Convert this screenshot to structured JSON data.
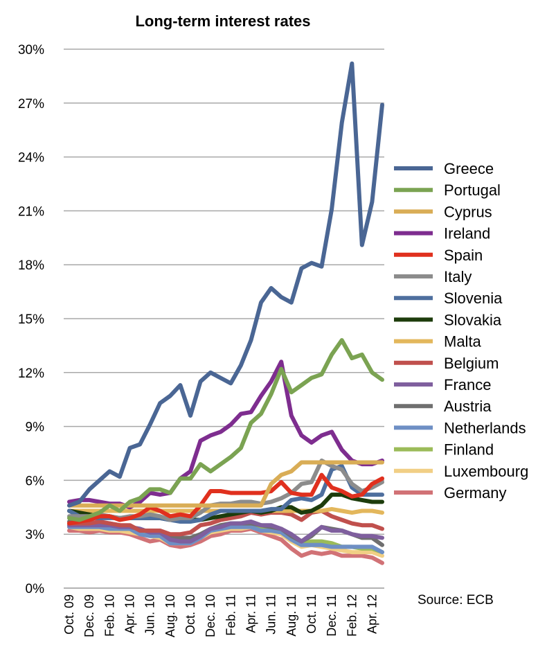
{
  "chart_data": {
    "type": "line",
    "title": "Long-term interest rates",
    "source": "Source: ECB",
    "ylim": [
      0,
      30
    ],
    "yticks": [
      0,
      3,
      6,
      9,
      12,
      15,
      18,
      21,
      24,
      27,
      30
    ],
    "ytick_labels": [
      "0%",
      "3%",
      "6%",
      "9%",
      "12%",
      "15%",
      "18%",
      "21%",
      "24%",
      "27%",
      "30%"
    ],
    "xtick_labels": [
      "Oct. 09",
      "Dec. 09",
      "Feb. 10",
      "Apr. 10",
      "Jun. 10",
      "Aug. 10",
      "Oct. 10",
      "Dec. 10",
      "Feb. 11",
      "Apr. 11",
      "Jun. 11",
      "Aug. 11",
      "Oct. 11",
      "Dec. 11",
      "Feb. 12",
      "Apr. 12"
    ],
    "x": [
      "Oct. 09",
      "Nov. 09",
      "Dec. 09",
      "Jan. 10",
      "Feb. 10",
      "Mar. 10",
      "Apr. 10",
      "May 10",
      "Jun. 10",
      "Jul. 10",
      "Aug. 10",
      "Sep. 10",
      "Oct. 10",
      "Nov. 10",
      "Dec. 10",
      "Jan. 11",
      "Feb. 11",
      "Mar. 11",
      "Apr. 11",
      "May 11",
      "Jun. 11",
      "Jul. 11",
      "Aug. 11",
      "Sep. 11",
      "Oct. 11",
      "Nov. 11",
      "Dec. 11",
      "Jan. 12",
      "Feb. 12",
      "Mar. 12",
      "Apr. 12",
      "May 12"
    ],
    "grid": true,
    "legend_position": "right",
    "series": [
      {
        "name": "Greece",
        "color": "#4a6694",
        "values": [
          4.6,
          4.8,
          5.5,
          6.0,
          6.5,
          6.2,
          7.8,
          8.0,
          9.1,
          10.3,
          10.7,
          11.3,
          9.6,
          11.5,
          12.0,
          11.7,
          11.4,
          12.4,
          13.8,
          15.9,
          16.7,
          16.2,
          15.9,
          17.8,
          18.1,
          17.9,
          21.1,
          25.9,
          29.2,
          19.1,
          21.5,
          26.9
        ]
      },
      {
        "name": "Portugal",
        "color": "#7ba352",
        "values": [
          3.9,
          3.8,
          4.0,
          4.2,
          4.6,
          4.3,
          4.8,
          5.0,
          5.5,
          5.5,
          5.3,
          6.1,
          6.1,
          6.9,
          6.5,
          6.9,
          7.3,
          7.8,
          9.2,
          9.7,
          10.8,
          12.2,
          10.9,
          11.3,
          11.7,
          11.9,
          13.0,
          13.8,
          12.8,
          13.0,
          12.0,
          11.6
        ]
      },
      {
        "name": "Cyprus",
        "color": "#d9ad56",
        "values": [
          4.6,
          4.6,
          4.6,
          4.6,
          4.6,
          4.6,
          4.6,
          4.6,
          4.6,
          4.6,
          4.6,
          4.6,
          4.6,
          4.6,
          4.6,
          4.6,
          4.6,
          4.6,
          4.6,
          4.6,
          5.8,
          6.3,
          6.5,
          7.0,
          7.0,
          7.0,
          7.0,
          7.0,
          7.0,
          7.0,
          7.0,
          7.0
        ]
      },
      {
        "name": "Ireland",
        "color": "#7e2d8f",
        "values": [
          4.8,
          4.9,
          4.9,
          4.8,
          4.7,
          4.7,
          4.5,
          4.8,
          5.3,
          5.2,
          5.3,
          6.1,
          6.5,
          8.2,
          8.5,
          8.7,
          9.1,
          9.7,
          9.8,
          10.7,
          11.5,
          12.6,
          9.6,
          8.5,
          8.1,
          8.5,
          8.7,
          7.7,
          7.1,
          6.9,
          6.9,
          7.1
        ]
      },
      {
        "name": "Spain",
        "color": "#e0301e",
        "values": [
          3.6,
          3.7,
          3.8,
          4.0,
          4.0,
          3.8,
          3.9,
          4.1,
          4.5,
          4.3,
          4.0,
          4.1,
          4.0,
          4.6,
          5.4,
          5.4,
          5.3,
          5.3,
          5.3,
          5.3,
          5.4,
          5.9,
          5.3,
          5.2,
          5.2,
          6.3,
          5.6,
          5.4,
          5.1,
          5.2,
          5.8,
          6.1
        ]
      },
      {
        "name": "Italy",
        "color": "#8c8c8c",
        "values": [
          4.0,
          4.0,
          4.0,
          4.1,
          4.0,
          3.9,
          4.0,
          4.0,
          4.1,
          4.0,
          3.8,
          3.9,
          3.9,
          4.2,
          4.6,
          4.7,
          4.7,
          4.8,
          4.8,
          4.7,
          4.8,
          5.0,
          5.3,
          5.8,
          5.9,
          7.1,
          6.8,
          6.6,
          5.8,
          5.4,
          5.6,
          5.9
        ]
      },
      {
        "name": "Slovenia",
        "color": "#4e6f9e",
        "values": [
          4.3,
          4.0,
          3.9,
          3.9,
          3.9,
          3.9,
          3.9,
          3.9,
          3.9,
          3.9,
          3.8,
          3.7,
          3.7,
          3.8,
          4.1,
          4.3,
          4.3,
          4.3,
          4.3,
          4.3,
          4.4,
          4.4,
          4.9,
          5.0,
          4.9,
          5.2,
          6.6,
          6.8,
          5.6,
          5.2,
          5.2,
          5.2
        ]
      },
      {
        "name": "Slovakia",
        "color": "#1d3c0c",
        "values": [
          4.3,
          4.2,
          4.1,
          4.0,
          4.0,
          3.9,
          3.9,
          3.9,
          3.9,
          3.9,
          3.8,
          3.8,
          3.8,
          3.8,
          3.9,
          4.0,
          4.1,
          4.2,
          4.3,
          4.2,
          4.3,
          4.5,
          4.5,
          4.2,
          4.3,
          4.6,
          5.2,
          5.2,
          5.0,
          4.9,
          4.8,
          4.8
        ]
      },
      {
        "name": "Malta",
        "color": "#e3b75c",
        "values": [
          4.3,
          4.3,
          4.3,
          4.3,
          4.3,
          4.3,
          4.3,
          4.3,
          4.3,
          4.3,
          4.3,
          4.3,
          4.3,
          4.3,
          4.3,
          4.3,
          4.3,
          4.3,
          4.3,
          4.3,
          4.3,
          4.3,
          4.3,
          4.3,
          4.3,
          4.3,
          4.4,
          4.3,
          4.2,
          4.3,
          4.3,
          4.2
        ]
      },
      {
        "name": "Belgium",
        "color": "#c0504d",
        "values": [
          3.6,
          3.6,
          3.6,
          3.7,
          3.6,
          3.5,
          3.5,
          3.2,
          3.2,
          3.2,
          3.0,
          3.0,
          3.1,
          3.5,
          3.6,
          3.8,
          3.9,
          4.0,
          4.2,
          4.1,
          4.2,
          4.2,
          4.1,
          3.8,
          4.2,
          4.3,
          4.0,
          3.8,
          3.6,
          3.5,
          3.5,
          3.3
        ]
      },
      {
        "name": "France",
        "color": "#7f5f9e",
        "values": [
          3.5,
          3.5,
          3.5,
          3.5,
          3.5,
          3.4,
          3.4,
          3.3,
          3.1,
          3.1,
          2.7,
          2.6,
          2.6,
          2.9,
          3.3,
          3.4,
          3.6,
          3.6,
          3.7,
          3.5,
          3.5,
          3.3,
          3.0,
          2.6,
          3.0,
          3.4,
          3.2,
          3.2,
          3.0,
          2.9,
          2.9,
          2.8
        ]
      },
      {
        "name": "Austria",
        "color": "#6f6f6f",
        "values": [
          3.7,
          3.6,
          3.6,
          3.6,
          3.6,
          3.5,
          3.4,
          3.3,
          3.1,
          3.1,
          2.8,
          2.8,
          2.8,
          3.0,
          3.3,
          3.5,
          3.6,
          3.6,
          3.6,
          3.5,
          3.4,
          3.3,
          2.9,
          2.6,
          2.9,
          3.4,
          3.3,
          3.2,
          3.0,
          2.8,
          2.8,
          2.4
        ]
      },
      {
        "name": "Netherlands",
        "color": "#6e8fc4",
        "values": [
          3.4,
          3.4,
          3.4,
          3.4,
          3.3,
          3.3,
          3.3,
          3.0,
          2.9,
          2.9,
          2.5,
          2.5,
          2.5,
          2.8,
          3.2,
          3.3,
          3.4,
          3.4,
          3.4,
          3.2,
          3.2,
          3.1,
          2.7,
          2.4,
          2.4,
          2.4,
          2.3,
          2.3,
          2.3,
          2.3,
          2.3,
          2.0
        ]
      },
      {
        "name": "Finland",
        "color": "#9bbb59",
        "values": [
          3.5,
          3.5,
          3.5,
          3.5,
          3.4,
          3.3,
          3.3,
          3.1,
          3.0,
          2.9,
          2.6,
          2.6,
          2.6,
          2.9,
          3.2,
          3.4,
          3.5,
          3.5,
          3.6,
          3.4,
          3.4,
          3.2,
          2.8,
          2.5,
          2.6,
          2.6,
          2.5,
          2.3,
          2.3,
          2.2,
          2.2,
          2.0
        ]
      },
      {
        "name": "Luxembourg",
        "color": "#f1cf85",
        "values": [
          3.4,
          3.3,
          3.3,
          3.3,
          3.2,
          3.2,
          3.1,
          3.0,
          2.9,
          2.8,
          2.5,
          2.5,
          2.5,
          2.8,
          3.1,
          3.2,
          3.3,
          3.3,
          3.4,
          3.2,
          3.1,
          3.0,
          2.6,
          2.3,
          2.4,
          2.3,
          2.2,
          2.1,
          2.0,
          2.0,
          2.0,
          1.8
        ]
      },
      {
        "name": "Germany",
        "color": "#d17276",
        "values": [
          3.2,
          3.2,
          3.1,
          3.2,
          3.1,
          3.1,
          3.0,
          2.8,
          2.6,
          2.7,
          2.4,
          2.3,
          2.4,
          2.6,
          2.9,
          3.0,
          3.2,
          3.2,
          3.3,
          3.1,
          2.9,
          2.7,
          2.2,
          1.8,
          2.0,
          1.9,
          2.0,
          1.8,
          1.8,
          1.8,
          1.7,
          1.4
        ]
      }
    ]
  }
}
